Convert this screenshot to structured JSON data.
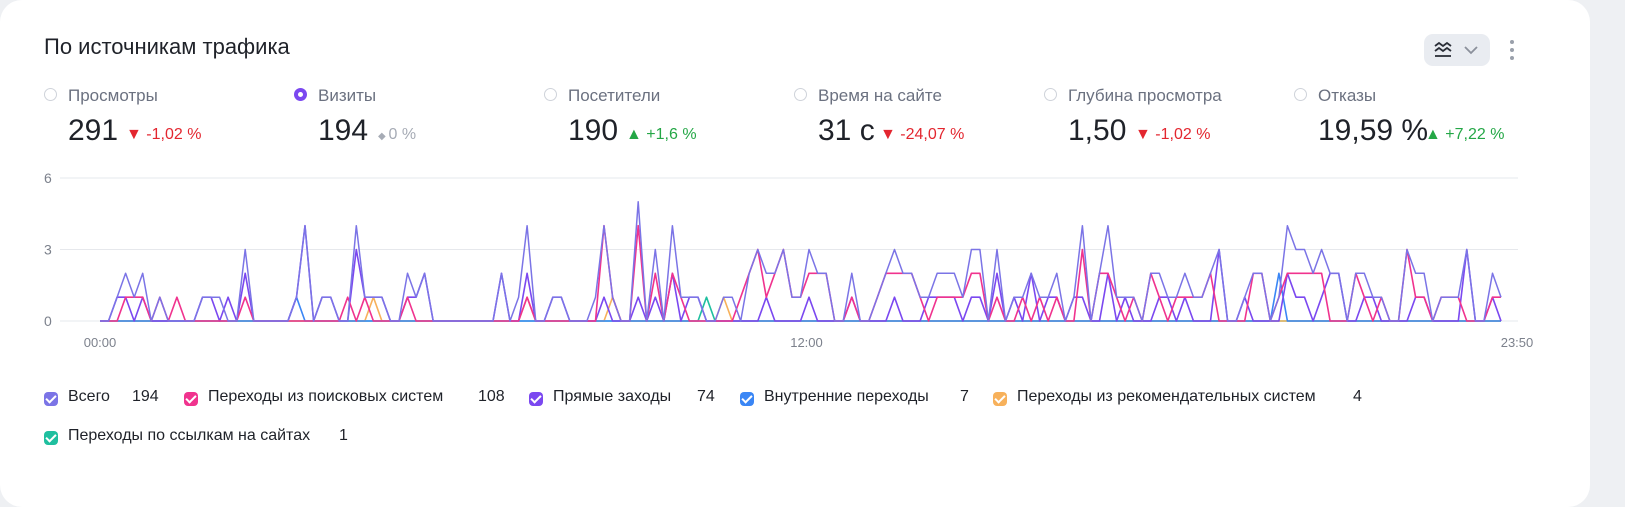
{
  "title": "По источникам трафика",
  "toolbar": {
    "view_icon": "chart-type-icon",
    "dropdown_icon": "chevron-down-icon",
    "more_icon": "more-vertical-icon"
  },
  "metrics": [
    {
      "label": "Просмотры",
      "value": "291",
      "delta": "-1,02 %",
      "direction": "down",
      "selected": false
    },
    {
      "label": "Визиты",
      "value": "194",
      "delta": "0 %",
      "direction": "neutral",
      "selected": true
    },
    {
      "label": "Посетители",
      "value": "190",
      "delta": "+1,6 %",
      "direction": "up",
      "selected": false
    },
    {
      "label": "Время на сайте",
      "value": "31 с",
      "delta": "-24,07 %",
      "direction": "down",
      "selected": false
    },
    {
      "label": "Глубина просмотра",
      "value": "1,50",
      "delta": "-1,02 %",
      "direction": "down",
      "selected": false
    },
    {
      "label": "Отказы",
      "value": "19,59 %",
      "delta": "+7,22 %",
      "direction": "up",
      "selected": false
    }
  ],
  "legend": [
    {
      "name": "Всего",
      "count": "194",
      "color": "#7b74e6"
    },
    {
      "name": "Переходы из поисковых систем",
      "count": "108",
      "color": "#f0338e"
    },
    {
      "name": "Прямые заходы",
      "count": "74",
      "color": "#7b48f0"
    },
    {
      "name": "Внутренние переходы",
      "count": "7",
      "color": "#3a86f5"
    },
    {
      "name": "Переходы из рекомендательных систем",
      "count": "4",
      "color": "#f7b15b"
    },
    {
      "name": "Переходы по ссылкам на сайтах",
      "count": "1",
      "color": "#1fbf9f"
    }
  ],
  "chart_data": {
    "type": "line",
    "x_start": "00:00",
    "x_end": "23:50",
    "x_ticks": [
      "00:00",
      "12:00",
      "23:50"
    ],
    "y_ticks": [
      0,
      3,
      6
    ],
    "ylim": [
      0,
      6
    ],
    "grid": true,
    "series": [
      {
        "name": "Всего",
        "color": "#7b74e6",
        "values": [
          0,
          0,
          1,
          2,
          1,
          2,
          0,
          1,
          0,
          0,
          0,
          0,
          1,
          1,
          1,
          0,
          0,
          3,
          0,
          0,
          0,
          0,
          0,
          1,
          4,
          0,
          1,
          1,
          0,
          0,
          4,
          1,
          1,
          1,
          0,
          0,
          2,
          1,
          2,
          0,
          0,
          0,
          0,
          0,
          0,
          0,
          0,
          2,
          0,
          1,
          4,
          0,
          0,
          1,
          1,
          0,
          0,
          0,
          1,
          4,
          1,
          0,
          0,
          5,
          0,
          3,
          0,
          4,
          1,
          1,
          1,
          0,
          0,
          1,
          1,
          0,
          2,
          3,
          2,
          2,
          3,
          1,
          1,
          3,
          2,
          2,
          0,
          0,
          2,
          0,
          0,
          1,
          2,
          3,
          2,
          2,
          1,
          1,
          2,
          2,
          2,
          1,
          3,
          3,
          0,
          3,
          0,
          1,
          1,
          2,
          1,
          1,
          2,
          0,
          1,
          4,
          0,
          2,
          4,
          1,
          1,
          1,
          0,
          2,
          2,
          1,
          1,
          2,
          1,
          1,
          2,
          3,
          0,
          0,
          1,
          2,
          2,
          0,
          1,
          4,
          3,
          3,
          2,
          3,
          2,
          2,
          0,
          2,
          2,
          1,
          1,
          0,
          0,
          3,
          2,
          2,
          0,
          1,
          1,
          1,
          3,
          0,
          0,
          2,
          1
        ]
      },
      {
        "name": "Переходы из поисковых систем",
        "color": "#f0338e",
        "values": [
          0,
          0,
          0,
          1,
          1,
          1,
          0,
          1,
          0,
          1,
          0,
          0,
          0,
          0,
          0,
          0,
          0,
          1,
          0,
          0,
          0,
          0,
          0,
          0,
          0,
          0,
          0,
          0,
          0,
          1,
          0,
          1,
          0,
          0,
          0,
          0,
          1,
          0,
          0,
          0,
          0,
          0,
          0,
          0,
          0,
          0,
          0,
          0,
          0,
          0,
          1,
          0,
          0,
          0,
          0,
          0,
          0,
          0,
          0,
          4,
          1,
          0,
          0,
          4,
          0,
          2,
          0,
          2,
          1,
          0,
          0,
          0,
          0,
          0,
          0,
          1,
          2,
          3,
          1,
          2,
          3,
          1,
          1,
          2,
          2,
          2,
          0,
          0,
          1,
          0,
          0,
          1,
          2,
          2,
          2,
          2,
          1,
          0,
          1,
          1,
          1,
          1,
          2,
          2,
          0,
          1,
          0,
          0,
          1,
          0,
          1,
          0,
          1,
          0,
          0,
          3,
          0,
          2,
          2,
          1,
          0,
          1,
          0,
          2,
          1,
          0,
          1,
          1,
          1,
          1,
          2,
          0,
          0,
          0,
          0,
          2,
          2,
          0,
          1,
          2,
          2,
          2,
          2,
          2,
          0,
          0,
          0,
          2,
          1,
          0,
          1,
          0,
          0,
          3,
          1,
          1,
          0,
          1,
          1,
          1,
          0,
          0,
          0,
          1,
          1
        ]
      },
      {
        "name": "Прямые заходы",
        "color": "#7b48f0",
        "values": [
          0,
          0,
          1,
          1,
          0,
          1,
          0,
          0,
          0,
          0,
          0,
          0,
          1,
          1,
          0,
          1,
          0,
          2,
          0,
          0,
          0,
          0,
          0,
          1,
          4,
          0,
          1,
          1,
          0,
          0,
          3,
          1,
          1,
          1,
          0,
          0,
          1,
          1,
          2,
          0,
          0,
          0,
          0,
          0,
          0,
          0,
          0,
          2,
          0,
          0,
          2,
          0,
          0,
          1,
          1,
          0,
          0,
          0,
          0,
          1,
          0,
          0,
          0,
          1,
          0,
          1,
          0,
          2,
          0,
          1,
          1,
          0,
          0,
          0,
          0,
          0,
          0,
          0,
          1,
          0,
          0,
          0,
          0,
          1,
          0,
          0,
          0,
          0,
          1,
          0,
          0,
          0,
          0,
          1,
          0,
          0,
          0,
          1,
          1,
          1,
          1,
          0,
          1,
          1,
          0,
          2,
          0,
          1,
          0,
          2,
          0,
          1,
          1,
          0,
          1,
          1,
          0,
          0,
          2,
          0,
          1,
          0,
          0,
          0,
          1,
          1,
          0,
          1,
          0,
          0,
          0,
          3,
          0,
          0,
          1,
          0,
          0,
          0,
          0,
          2,
          1,
          1,
          0,
          1,
          2,
          2,
          0,
          0,
          1,
          1,
          0,
          0,
          0,
          0,
          1,
          1,
          0,
          0,
          0,
          0,
          3,
          0,
          0,
          1,
          0
        ]
      },
      {
        "name": "Внутренние переходы",
        "color": "#3a86f5",
        "values": [
          0,
          0,
          0,
          0,
          0,
          0,
          0,
          0,
          0,
          0,
          0,
          0,
          0,
          0,
          0,
          0,
          0,
          0,
          0,
          0,
          0,
          0,
          0,
          1,
          0,
          0,
          0,
          0,
          0,
          0,
          0,
          0,
          0,
          0,
          0,
          0,
          0,
          0,
          0,
          0,
          0,
          0,
          0,
          0,
          0,
          0,
          0,
          0,
          0,
          0,
          0,
          0,
          0,
          0,
          0,
          0,
          0,
          0,
          0,
          0,
          0,
          0,
          0,
          0,
          0,
          0,
          0,
          0,
          0,
          0,
          0,
          0,
          0,
          0,
          0,
          0,
          0,
          0,
          0,
          0,
          0,
          0,
          0,
          0,
          0,
          0,
          0,
          0,
          0,
          0,
          0,
          0,
          0,
          0,
          0,
          0,
          0,
          0,
          0,
          0,
          0,
          0,
          0,
          0,
          0,
          0,
          0,
          0,
          0,
          0,
          0,
          0,
          0,
          0,
          0,
          0,
          0,
          0,
          0,
          0,
          0,
          0,
          0,
          0,
          0,
          0,
          0,
          0,
          0,
          0,
          0,
          0,
          0,
          0,
          0,
          0,
          0,
          0,
          2,
          0,
          0,
          0,
          0,
          0,
          0,
          0,
          0,
          0,
          0,
          0,
          0,
          0,
          0,
          0,
          0,
          0,
          0,
          0,
          0,
          0,
          0,
          0,
          0,
          0,
          0
        ]
      },
      {
        "name": "Переходы из рекомендательных систем",
        "color": "#f7b15b",
        "values": [
          0,
          0,
          0,
          0,
          0,
          0,
          0,
          0,
          0,
          0,
          0,
          0,
          0,
          0,
          0,
          0,
          0,
          0,
          0,
          0,
          0,
          0,
          0,
          0,
          0,
          0,
          0,
          0,
          0,
          0,
          0,
          0,
          1,
          0,
          0,
          0,
          0,
          0,
          0,
          0,
          0,
          0,
          0,
          0,
          0,
          0,
          0,
          0,
          0,
          0,
          1,
          0,
          0,
          0,
          0,
          0,
          0,
          0,
          0,
          0,
          1,
          0,
          0,
          0,
          0,
          0,
          0,
          0,
          0,
          0,
          0,
          0,
          0,
          1,
          0,
          0,
          0,
          0,
          0,
          0,
          0,
          0,
          0,
          0,
          0,
          0,
          0,
          0,
          0,
          0,
          0,
          0,
          0,
          0,
          0,
          0,
          0,
          0,
          0,
          0,
          0,
          0,
          0,
          0,
          0,
          0,
          0,
          0,
          0,
          0,
          0,
          0,
          0,
          0,
          0,
          0,
          0,
          0,
          0,
          0,
          0,
          0,
          0,
          0,
          0,
          0,
          0,
          0,
          0,
          0,
          0,
          0,
          0,
          0,
          0,
          0,
          0,
          0,
          0,
          0,
          0,
          0,
          0,
          0,
          0,
          0,
          0,
          0,
          0,
          0,
          0,
          0,
          0,
          0,
          0,
          0,
          0,
          0,
          0,
          0,
          0,
          0,
          0,
          0,
          0
        ]
      },
      {
        "name": "Переходы по ссылкам на сайтах",
        "color": "#1fbf9f",
        "values": [
          0,
          0,
          0,
          0,
          0,
          0,
          0,
          0,
          0,
          0,
          0,
          0,
          0,
          0,
          0,
          0,
          0,
          0,
          0,
          0,
          0,
          0,
          0,
          0,
          0,
          0,
          0,
          0,
          0,
          0,
          0,
          0,
          0,
          0,
          0,
          0,
          0,
          0,
          0,
          0,
          0,
          0,
          0,
          0,
          0,
          0,
          0,
          0,
          0,
          0,
          0,
          0,
          0,
          0,
          0,
          0,
          0,
          0,
          0,
          0,
          0,
          0,
          0,
          0,
          0,
          0,
          0,
          0,
          0,
          0,
          0,
          1,
          0,
          0,
          0,
          0,
          0,
          0,
          0,
          0,
          0,
          0,
          0,
          0,
          0,
          0,
          0,
          0,
          0,
          0,
          0,
          0,
          0,
          0,
          0,
          0,
          0,
          0,
          0,
          0,
          0,
          0,
          0,
          0,
          0,
          0,
          0,
          0,
          0,
          0,
          0,
          0,
          0,
          0,
          0,
          0,
          0,
          0,
          0,
          0,
          0,
          0,
          0,
          0,
          0,
          0,
          0,
          0,
          0,
          0,
          0,
          0,
          0,
          0,
          0,
          0,
          0,
          0,
          0,
          0,
          0,
          0,
          0,
          0,
          0,
          0,
          0,
          0,
          0,
          0,
          0,
          0,
          0,
          0,
          0,
          0,
          0,
          0,
          0,
          0,
          0,
          0,
          0,
          0,
          0
        ]
      }
    ]
  }
}
